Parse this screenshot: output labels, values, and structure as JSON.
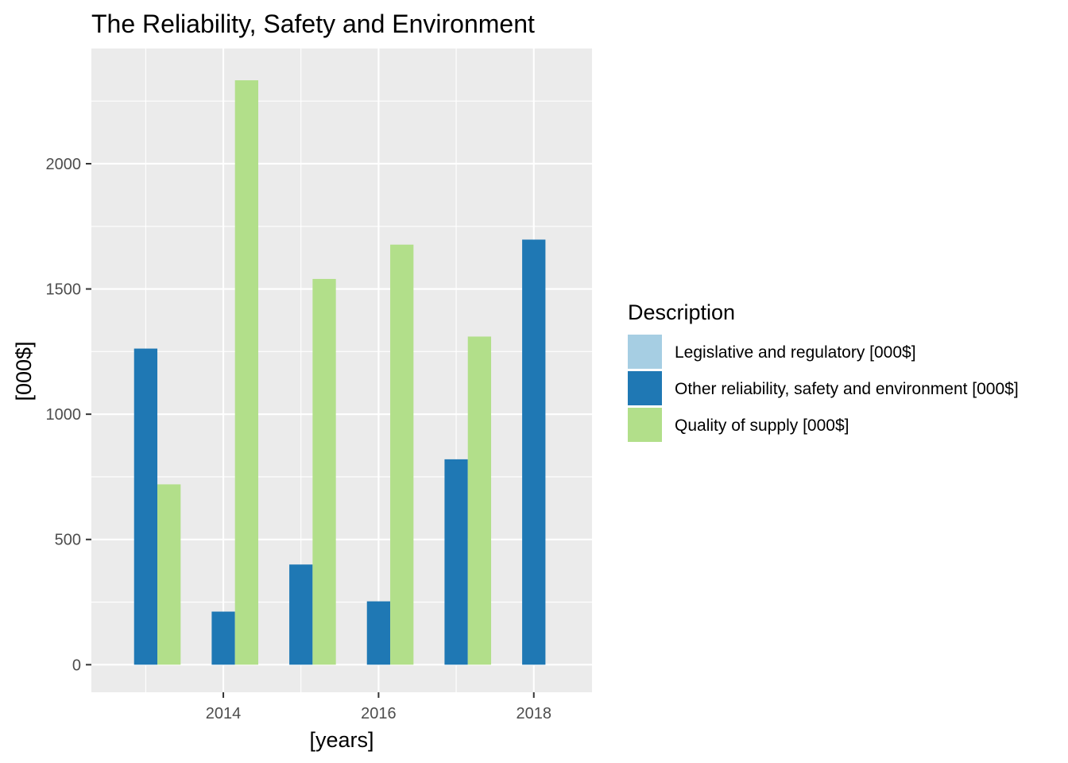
{
  "chart_data": {
    "type": "bar",
    "title": "The Reliability, Safety and Environment",
    "xlabel": "[years]",
    "ylabel": "[000$]",
    "x": [
      2013,
      2014,
      2015,
      2016,
      2017,
      2018
    ],
    "xlim": [
      2012.3,
      2018.75
    ],
    "ylim": [
      -110,
      2460
    ],
    "x_ticks": [
      2014,
      2016,
      2018
    ],
    "y_ticks": [
      0,
      500,
      1000,
      1500,
      2000
    ],
    "grid": true,
    "legend_position": "right",
    "legend_title": "Description",
    "series": [
      {
        "name": "Legislative and regulatory [000$]",
        "color": "#a6cee3",
        "values": [
          0,
          0,
          0,
          0,
          0,
          0
        ]
      },
      {
        "name": "Other reliability, safety and environment [000$]",
        "color": "#1f78b4",
        "values": [
          1262,
          212,
          400,
          253,
          820,
          1697
        ]
      },
      {
        "name": "Quality of supply [000$]",
        "color": "#b2df8a",
        "values": [
          720,
          2333,
          1540,
          1677,
          1310,
          0
        ]
      }
    ]
  }
}
